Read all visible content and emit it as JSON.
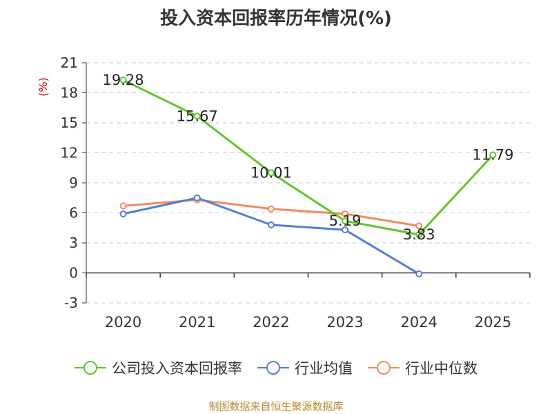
{
  "title": "投入资本回报率历年情况(%)",
  "source": "制图数据来自恒生聚源数据库",
  "chart_data": {
    "type": "line",
    "ylabel": "(%)",
    "ylim": [
      -3,
      21
    ],
    "yticks": [
      -3,
      0,
      3,
      6,
      9,
      12,
      15,
      18,
      21
    ],
    "categories": [
      "2020",
      "2021",
      "2022",
      "2023",
      "2024",
      "2025"
    ],
    "grid": true,
    "legend_position": "bottom",
    "series": [
      {
        "name": "公司投入资本回报率",
        "color": "#5cc72a",
        "values": [
          19.28,
          15.67,
          10.01,
          5.19,
          3.83,
          11.79
        ],
        "show_labels": true
      },
      {
        "name": "行业均值",
        "color": "#4f7fdb",
        "values": [
          5.9,
          7.5,
          4.8,
          4.3,
          -0.1,
          null
        ],
        "show_labels": false
      },
      {
        "name": "行业中位数",
        "color": "#f28a5a",
        "values": [
          6.7,
          7.3,
          6.4,
          5.9,
          4.7,
          null
        ],
        "show_labels": false
      }
    ]
  }
}
